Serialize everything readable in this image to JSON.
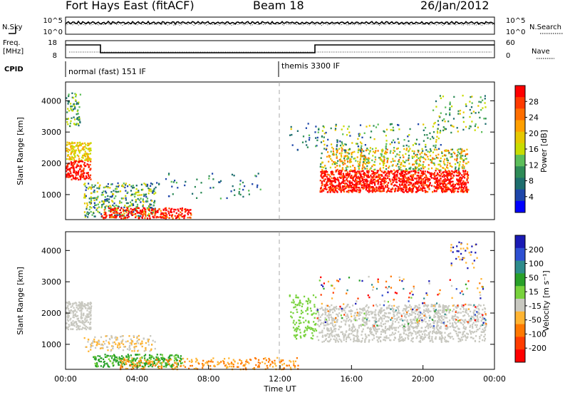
{
  "header": {
    "station": "Fort Hays East (fitACF)",
    "beam": "Beam 18",
    "date": "26/Jan/2012"
  },
  "top_panels": {
    "nsky_label": "N.Sky",
    "nsky_ticks": [
      "10^5",
      "10^0"
    ],
    "nsearch_label": "N.Search",
    "nsearch_ticks": [
      "10^5",
      "10^0"
    ],
    "freq_label_1": "Freq.",
    "freq_label_2": "[MHz]",
    "freq_ticks": [
      "18",
      "8"
    ],
    "nave_label": "Nave",
    "nave_ticks": [
      "60",
      "0"
    ],
    "cpid_label": "CPID",
    "cpid_segments": [
      "normal (fast) 151 IF",
      "themis 3300 IF"
    ]
  },
  "chart_data": [
    {
      "type": "heatmap",
      "name": "power",
      "ylabel": "Slant Range [km]",
      "yticks": [
        1000,
        2000,
        3000,
        4000
      ],
      "ylim": [
        200,
        4600
      ],
      "xlim": [
        0,
        24
      ],
      "colorbar_label": "Power [dB]",
      "colorbar_ticks": [
        "28",
        "24",
        "20",
        "16",
        "12",
        "8",
        "4"
      ],
      "colorbar_colors": [
        "#ff0000",
        "#ff3a00",
        "#ff6e00",
        "#ff9f00",
        "#e6c800",
        "#c8dc00",
        "#5cbe5a",
        "#2e8b57",
        "#1e6e6e",
        "#1e46aa",
        "#0000ff"
      ]
    },
    {
      "type": "heatmap",
      "name": "velocity",
      "ylabel": "Slant Range [km]",
      "yticks": [
        1000,
        2000,
        3000,
        4000
      ],
      "ylim": [
        200,
        4600
      ],
      "xlim": [
        0,
        24
      ],
      "xticks": [
        "00:00",
        "04:00",
        "08:00",
        "12:00",
        "16:00",
        "20:00",
        "00:00"
      ],
      "xlabel": "Time UT",
      "colorbar_label": "Velocity [m s⁻¹]",
      "colorbar_ticks": [
        "200",
        "100",
        "50",
        "15",
        "-15",
        "-50",
        "-100",
        "-200"
      ],
      "colorbar_colors": [
        "#1a1ab4",
        "#2e50d2",
        "#2e8c8c",
        "#28a028",
        "#78d23c",
        "#c8c8c0",
        "#ffb432",
        "#ff7800",
        "#ff3c00",
        "#ff0000"
      ]
    }
  ]
}
